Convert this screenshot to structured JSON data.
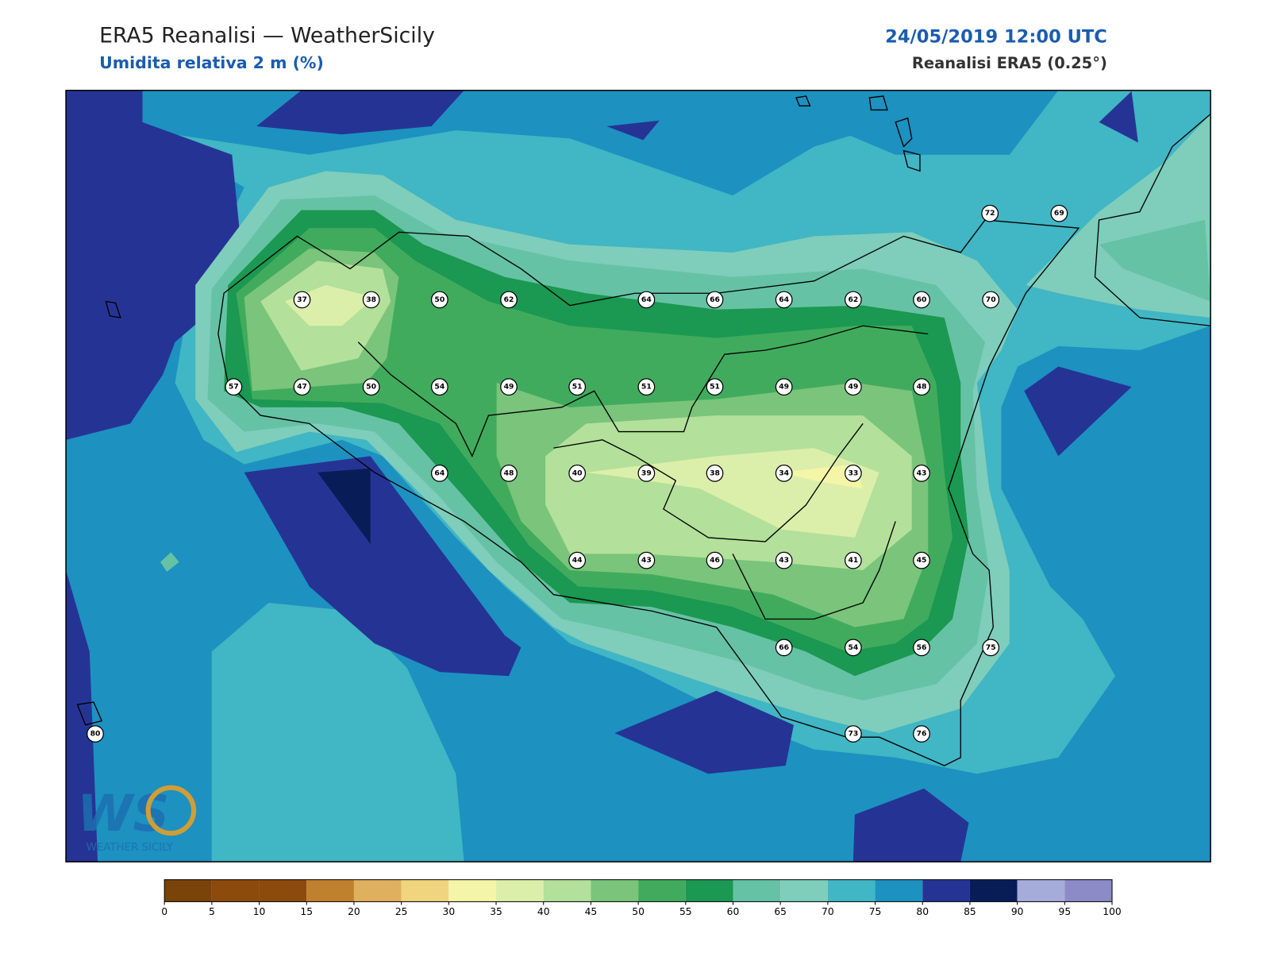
{
  "header": {
    "title": "ERA5 Reanalisi — WeatherSicily",
    "subtitle": "Umidita relativa 2 m (%)",
    "datetime": "24/05/2019 12:00 UTC",
    "source": "Reanalisi ERA5 (0.25°)"
  },
  "stations": {
    "values": [
      37,
      38,
      50,
      62,
      64,
      66,
      64,
      62,
      60,
      70,
      72,
      69,
      57,
      47,
      50,
      54,
      49,
      51,
      51,
      51,
      49,
      49,
      48,
      64,
      48,
      40,
      39,
      38,
      34,
      33,
      43,
      44,
      43,
      46,
      43,
      41,
      45,
      66,
      54,
      56,
      75,
      73,
      76,
      80
    ]
  },
  "colorbar": {
    "ticks": [
      0,
      5,
      10,
      15,
      20,
      25,
      30,
      35,
      40,
      45,
      50,
      55,
      60,
      65,
      70,
      75,
      80,
      85,
      90,
      95,
      100
    ],
    "colors": [
      "#7a4309",
      "#8c4a0d",
      "#8c4a0d",
      "#bf812d",
      "#dfb05d",
      "#f1d57e",
      "#f5f5a8",
      "#dbefab",
      "#b3e09a",
      "#7ac47b",
      "#41ab5d",
      "#1b9852",
      "#66c2a4",
      "#7fcdbb",
      "#41b6c4",
      "#1d91c0",
      "#253494",
      "#081d58",
      "#a5acd9",
      "#8c8bc8"
    ]
  },
  "logo": {
    "mark": "WS",
    "text": "WEATHER SICILY"
  }
}
